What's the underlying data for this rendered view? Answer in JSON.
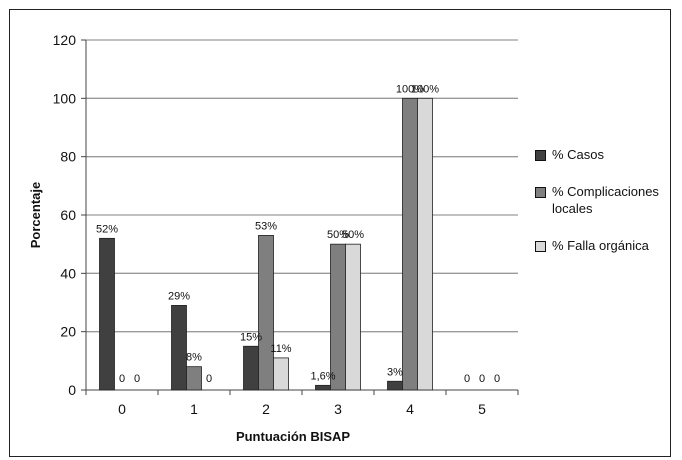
{
  "chart_data": {
    "type": "bar",
    "categories": [
      "0",
      "1",
      "2",
      "3",
      "4",
      "5"
    ],
    "series": [
      {
        "name": "% Casos",
        "color": "#404040",
        "values": [
          52,
          29,
          15,
          1.6,
          3,
          0
        ],
        "labels": [
          "52%",
          "29%",
          "15%",
          "1,6%",
          "3%",
          "0"
        ]
      },
      {
        "name": "% Complicaciones locales",
        "color": "#7f7f7f",
        "values": [
          0,
          8,
          53,
          50,
          100,
          0
        ],
        "labels": [
          "0",
          "8%",
          "53%",
          "50%",
          "100%",
          "0"
        ]
      },
      {
        "name": "% Falla orgánica",
        "color": "#d9d9d9",
        "values": [
          0,
          0,
          11,
          50,
          100,
          0
        ],
        "labels": [
          "0",
          "0",
          "11%",
          "50%",
          "100%",
          "0"
        ]
      }
    ],
    "xlabel": "Puntuación BISAP",
    "ylabel": "Porcentaje",
    "ylim": [
      0,
      120
    ],
    "yticks": [
      0,
      20,
      40,
      60,
      80,
      100,
      120
    ],
    "grid": true,
    "legend_position": "right"
  }
}
